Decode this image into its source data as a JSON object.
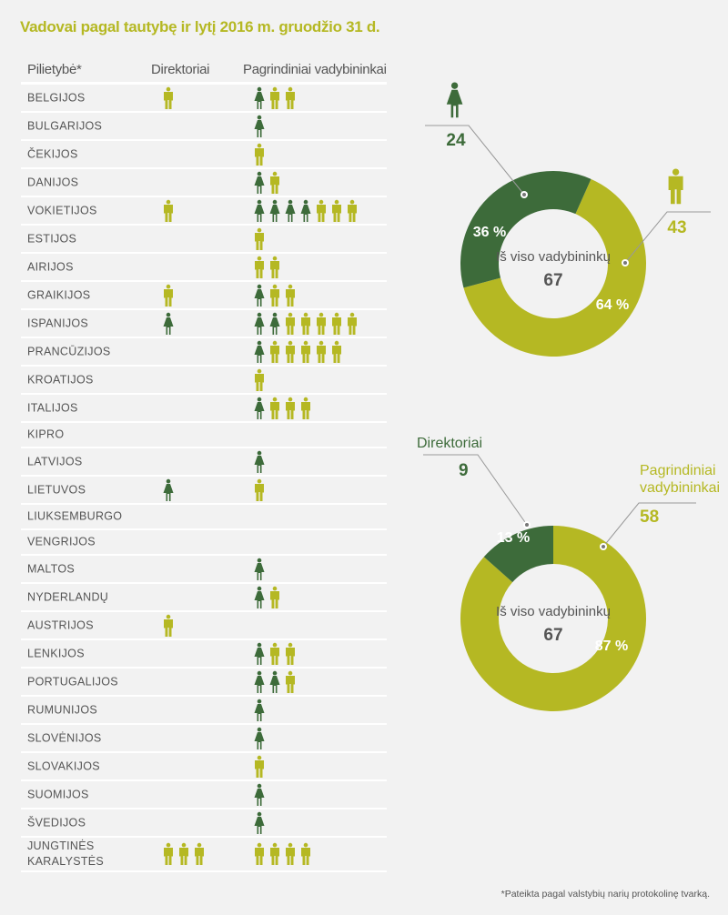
{
  "title": "Vadovai pagal tautybę ir lytį 2016 m. gruodžio 31 d.",
  "colors": {
    "female": "#3d6b3a",
    "male": "#b5b823",
    "text": "#555555",
    "background": "#f2f2f2"
  },
  "table": {
    "headers": {
      "country": "Pilietybė*",
      "directors": "Direktoriai",
      "managers": "Pagrindiniai vadybininkai"
    },
    "legend": {
      "F": "female-icon",
      "M": "male-icon"
    },
    "rows": [
      {
        "country": "BELGIJOS",
        "directors": [
          "M"
        ],
        "managers": [
          "F",
          "M",
          "M"
        ]
      },
      {
        "country": "BULGARIJOS",
        "directors": [],
        "managers": [
          "F"
        ]
      },
      {
        "country": "ČEKIJOS",
        "directors": [],
        "managers": [
          "M"
        ]
      },
      {
        "country": "DANIJOS",
        "directors": [],
        "managers": [
          "F",
          "M"
        ]
      },
      {
        "country": "VOKIETIJOS",
        "directors": [
          "M"
        ],
        "managers": [
          "F",
          "F",
          "F",
          "F",
          "M",
          "M",
          "M"
        ]
      },
      {
        "country": "ESTIJOS",
        "directors": [],
        "managers": [
          "M"
        ]
      },
      {
        "country": "AIRIJOS",
        "directors": [],
        "managers": [
          "M",
          "M"
        ]
      },
      {
        "country": "GRAIKIJOS",
        "directors": [
          "M"
        ],
        "managers": [
          "F",
          "M",
          "M"
        ]
      },
      {
        "country": "ISPANIJOS",
        "directors": [
          "F"
        ],
        "managers": [
          "F",
          "F",
          "M",
          "M",
          "M",
          "M",
          "M"
        ]
      },
      {
        "country": "PRANCŪZIJOS",
        "directors": [],
        "managers": [
          "F",
          "M",
          "M",
          "M",
          "M",
          "M"
        ]
      },
      {
        "country": "KROATIJOS",
        "directors": [],
        "managers": [
          "M"
        ]
      },
      {
        "country": "ITALIJOS",
        "directors": [],
        "managers": [
          "F",
          "M",
          "M",
          "M"
        ]
      },
      {
        "country": "KIPRO",
        "directors": [],
        "managers": []
      },
      {
        "country": "LATVIJOS",
        "directors": [],
        "managers": [
          "F"
        ]
      },
      {
        "country": "LIETUVOS",
        "directors": [
          "F"
        ],
        "managers": [
          "M"
        ]
      },
      {
        "country": "LIUKSEMBURGO",
        "directors": [],
        "managers": []
      },
      {
        "country": "VENGRIJOS",
        "directors": [],
        "managers": []
      },
      {
        "country": "MALTOS",
        "directors": [],
        "managers": [
          "F"
        ]
      },
      {
        "country": "NYDERLANDŲ",
        "directors": [],
        "managers": [
          "F",
          "M"
        ]
      },
      {
        "country": "AUSTRIJOS",
        "directors": [
          "M"
        ],
        "managers": []
      },
      {
        "country": "LENKIJOS",
        "directors": [],
        "managers": [
          "F",
          "M",
          "M"
        ]
      },
      {
        "country": "PORTUGALIJOS",
        "directors": [],
        "managers": [
          "F",
          "F",
          "M"
        ]
      },
      {
        "country": "RUMUNIJOS",
        "directors": [],
        "managers": [
          "F"
        ]
      },
      {
        "country": "SLOVĖNIJOS",
        "directors": [],
        "managers": [
          "F"
        ]
      },
      {
        "country": "SLOVAKIJOS",
        "directors": [],
        "managers": [
          "M"
        ]
      },
      {
        "country": "SUOMIJOS",
        "directors": [],
        "managers": [
          "F"
        ]
      },
      {
        "country": "ŠVEDIJOS",
        "directors": [],
        "managers": [
          "F"
        ]
      },
      {
        "country": "JUNGTINĖS\nKARALYSTĖS",
        "directors": [
          "M",
          "M",
          "M"
        ],
        "managers": [
          "M",
          "M",
          "M",
          "M"
        ]
      }
    ]
  },
  "chart_data": [
    {
      "type": "pie",
      "donut": true,
      "center_label": "Iš viso vadybininkų",
      "center_value": "67",
      "slices": [
        {
          "label": "female-icon",
          "value": 24,
          "percent_label": "36 %",
          "color": "#3d6b3a"
        },
        {
          "label": "male-icon",
          "value": 43,
          "percent_label": "64 %",
          "color": "#b5b823"
        }
      ]
    },
    {
      "type": "pie",
      "donut": true,
      "center_label": "Iš viso vadybininkų",
      "center_value": "67",
      "slices": [
        {
          "label": "Direktoriai",
          "value": 9,
          "percent_label": "13 %",
          "color": "#3d6b3a"
        },
        {
          "label": "Pagrindiniai\nvadybininkai",
          "value": 58,
          "percent_label": "87 %",
          "color": "#b5b823"
        }
      ]
    }
  ],
  "footnote": "*Pateikta pagal valstybių narių protokolinę tvarką."
}
